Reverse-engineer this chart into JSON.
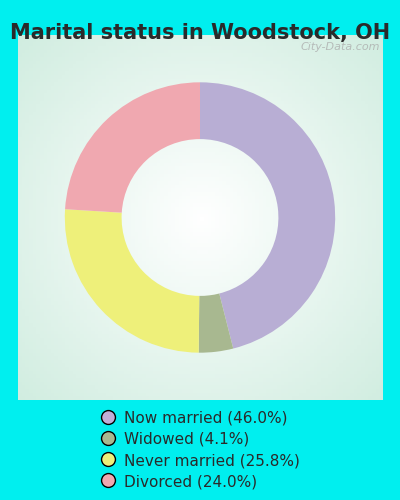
{
  "title": "Marital status in Woodstock, OH",
  "categories": [
    "Now married (46.0%)",
    "Widowed (4.1%)",
    "Never married (25.8%)",
    "Divorced (24.0%)"
  ],
  "values": [
    46.0,
    4.1,
    25.8,
    24.0
  ],
  "colors": [
    "#b8aed4",
    "#a8b890",
    "#eef07a",
    "#f0a8b0"
  ],
  "background_color": "#d8f0e0",
  "outer_background": "#00efef",
  "legend_colors": [
    "#c0aed8",
    "#a8b890",
    "#eef07a",
    "#f0a8b0"
  ],
  "title_fontsize": 15,
  "legend_fontsize": 11,
  "start_angle": 90,
  "watermark": "City-Data.com"
}
